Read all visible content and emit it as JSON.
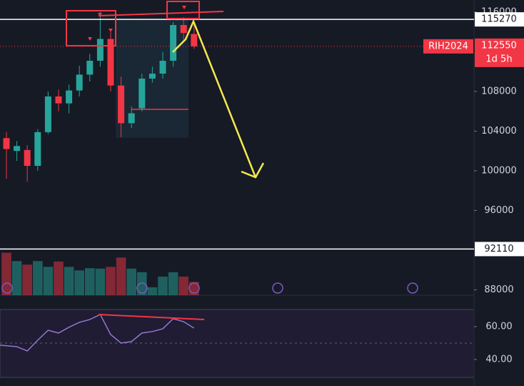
{
  "chart_data": {
    "type": "candlestick",
    "symbol": "RIH2024",
    "countdown": "1d 5h",
    "last_price": 112550,
    "price_lines": [
      115270,
      92110
    ],
    "up_color": "#26a69a",
    "down_color": "#f23645",
    "open": [
      103300,
      102000,
      102100,
      100500,
      103900,
      107500,
      106800,
      108100,
      109700,
      111100,
      113300,
      108600,
      104800,
      106300,
      109300,
      109800,
      111100,
      114700,
      113800
    ],
    "high": [
      103900,
      103000,
      102600,
      104200,
      108000,
      108200,
      108700,
      110600,
      111800,
      116000,
      114000,
      109500,
      106500,
      109800,
      110500,
      112000,
      115000,
      115500,
      114800
    ],
    "low": [
      99200,
      101000,
      98900,
      100000,
      103700,
      106000,
      105800,
      107500,
      109000,
      110500,
      108000,
      103400,
      104300,
      106000,
      108900,
      109300,
      110500,
      113000,
      112300
    ],
    "close": [
      102200,
      102500,
      100500,
      103900,
      107500,
      106800,
      108100,
      109700,
      111100,
      113300,
      108600,
      104800,
      105800,
      109300,
      109800,
      111100,
      114700,
      113900,
      112550
    ],
    "volume": [
      96,
      77,
      69,
      77,
      64,
      76,
      64,
      56,
      61,
      60,
      64,
      85,
      60,
      52,
      18,
      42,
      52,
      42,
      30
    ],
    "vlim": [
      0,
      100
    ],
    "ylim": [
      78300,
      117225
    ],
    "yticks": [
      116000,
      108000,
      104000,
      100000,
      96000,
      88000
    ],
    "rsi": [
      48.7,
      47.8,
      45.2,
      51.7,
      57.8,
      56.1,
      59.6,
      62.6,
      64.3,
      67.4,
      55.2,
      50.0,
      50.9,
      56.1,
      57.0,
      58.7,
      64.8,
      63.0,
      59.1
    ],
    "rsi_color": "#9575cd",
    "rsi_lim": [
      29.1,
      70.4
    ],
    "rsi_ticks": [
      {
        "value": 60,
        "label": "60.00"
      },
      {
        "value": 40,
        "label": "40.00"
      }
    ]
  }
}
